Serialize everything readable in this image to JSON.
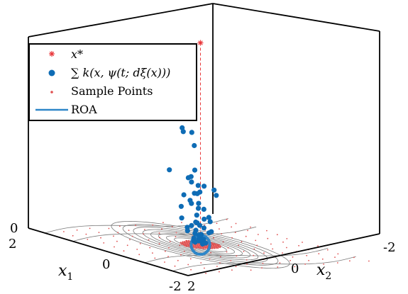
{
  "chart_data": {
    "type": "scatter",
    "title": "",
    "xlabel": "x1",
    "ylabel": "x2",
    "x_axis": {
      "label_main": "x",
      "label_sub": "1",
      "ticks": [
        "2",
        "0",
        "-2"
      ],
      "range": [
        -2,
        2
      ]
    },
    "y_axis": {
      "label_main": "x",
      "label_sub": "2",
      "ticks": [
        "2",
        "0",
        "-2"
      ],
      "range": [
        -2,
        2
      ]
    },
    "z_axis": {
      "ticks": [
        "0"
      ]
    },
    "grid": false,
    "legend_placement": "top-left",
    "legend": {
      "equilibrium": "x*",
      "kernel_sum": "∑ k(x, ψ(t; dξ(x)))",
      "samples": "Sample Points",
      "roa": "ROA"
    },
    "colors": {
      "equilibrium": "#e8373a",
      "kernel_sum": "#0e6cb5",
      "samples": "#e05050",
      "roa": "#2e86c8",
      "streamlines": "#7a7a7a"
    },
    "equilibrium": {
      "x1": 0,
      "x2": 0,
      "z": 0.95
    },
    "roa": {
      "center": [
        0,
        0
      ],
      "radius": 0.35
    },
    "kernel_points": [
      [
        0.26,
        0.3,
        0.7
      ],
      [
        0.17,
        0.04,
        0.52
      ],
      [
        0.1,
        0.31,
        0.55
      ],
      [
        0.27,
        -0.1,
        0.45
      ],
      [
        -0.02,
        0.39,
        0.54
      ],
      [
        0.34,
        0.38,
        0.34
      ],
      [
        0.05,
        0.08,
        0.35
      ],
      [
        0.06,
        -0.13,
        0.27
      ],
      [
        0.12,
        0.09,
        0.29
      ],
      [
        0.04,
        0.19,
        0.21
      ],
      [
        -0.11,
        -0.2,
        0.26
      ],
      [
        0.0,
        0.05,
        0.28
      ],
      [
        0.31,
        -0.2,
        0.22
      ],
      [
        0.28,
        0.02,
        0.3
      ],
      [
        -0.17,
        0.16,
        0.26
      ],
      [
        0.2,
        0.03,
        0.31
      ],
      [
        -0.08,
        0.2,
        0.25
      ],
      [
        0.11,
        0.1,
        0.19
      ],
      [
        0.22,
        -0.15,
        0.18
      ],
      [
        0.3,
        0.1,
        0.22
      ],
      [
        -0.05,
        -0.3,
        0.23
      ],
      [
        0.25,
        0.2,
        0.17
      ],
      [
        -0.2,
        0.1,
        0.18
      ],
      [
        0.03,
        0.02,
        0.17
      ],
      [
        0.15,
        -0.05,
        0.13
      ],
      [
        -0.15,
        0.05,
        0.13
      ],
      [
        0.18,
        0.25,
        0.12
      ],
      [
        0.08,
        -0.25,
        0.12
      ],
      [
        -0.07,
        -0.15,
        0.11
      ],
      [
        0.12,
        0.0,
        0.1
      ],
      [
        -0.12,
        0.12,
        0.1
      ],
      [
        0.05,
        0.15,
        0.09
      ],
      [
        0.2,
        -0.1,
        0.09
      ],
      [
        -0.03,
        -0.05,
        0.08
      ],
      [
        0.1,
        0.2,
        0.08
      ],
      [
        -0.18,
        -0.08,
        0.07
      ],
      [
        0.0,
        0.1,
        0.07
      ],
      [
        0.15,
        0.15,
        0.06
      ],
      [
        -0.1,
        -0.1,
        0.06
      ],
      [
        0.08,
        0.05,
        0.05
      ],
      [
        -0.05,
        0.08,
        0.05
      ],
      [
        0.12,
        -0.12,
        0.04
      ],
      [
        0.02,
        -0.02,
        0.04
      ],
      [
        -0.08,
        0.0,
        0.03
      ],
      [
        0.05,
        0.1,
        0.03
      ],
      [
        0.1,
        -0.05,
        0.02
      ],
      [
        -0.02,
        0.05,
        0.02
      ],
      [
        0.0,
        0.0,
        0.02
      ],
      [
        0.06,
        0.06,
        0.01
      ],
      [
        -0.06,
        -0.06,
        0.01
      ],
      [
        0.14,
        0.02,
        0.01
      ],
      [
        -0.1,
        0.04,
        0.01
      ]
    ]
  }
}
